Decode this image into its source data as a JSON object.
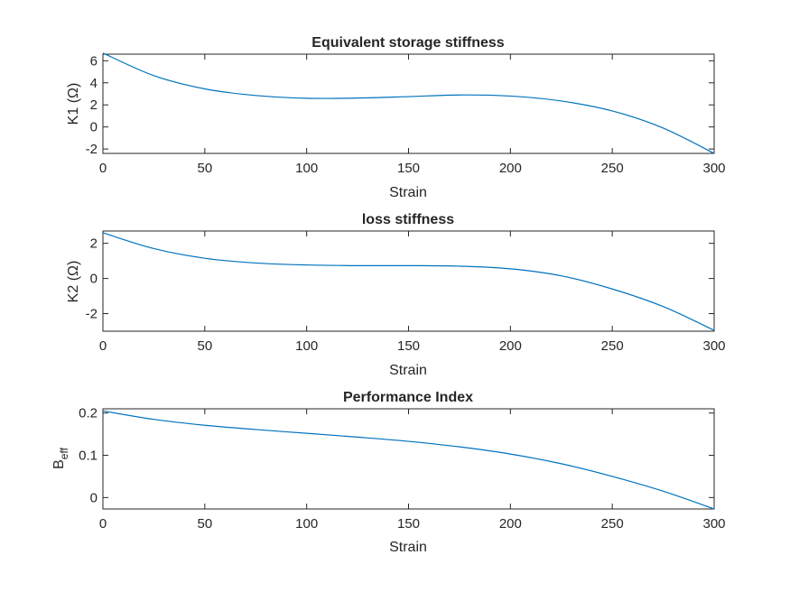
{
  "chart_data": [
    {
      "type": "line",
      "title": "Equivalent storage stiffness",
      "xlabel": "Strain",
      "ylabel": "K1 (Ω)",
      "xlim": [
        0,
        300
      ],
      "ylim": [
        -2.4,
        6.6
      ],
      "xticks": [
        0,
        50,
        100,
        150,
        200,
        250,
        300
      ],
      "yticks": [
        -2,
        0,
        2,
        4,
        6
      ],
      "grid": false,
      "series": [
        {
          "color": "#0072BD",
          "x": [
            0,
            25,
            50,
            75,
            100,
            125,
            150,
            175,
            200,
            225,
            250,
            275,
            300
          ],
          "y": [
            6.7,
            4.65,
            3.45,
            2.85,
            2.6,
            2.62,
            2.75,
            2.9,
            2.8,
            2.35,
            1.45,
            -0.1,
            -2.4
          ]
        }
      ]
    },
    {
      "type": "line",
      "title": "loss stiffness",
      "xlabel": "Strain",
      "ylabel": "K2 (Ω)",
      "xlim": [
        0,
        300
      ],
      "ylim": [
        -3,
        2.7
      ],
      "xticks": [
        0,
        50,
        100,
        150,
        200,
        250,
        300
      ],
      "yticks": [
        -2,
        0,
        2
      ],
      "grid": false,
      "series": [
        {
          "color": "#0072BD",
          "x": [
            0,
            25,
            50,
            75,
            100,
            125,
            150,
            175,
            200,
            225,
            250,
            275,
            300
          ],
          "y": [
            2.6,
            1.7,
            1.15,
            0.88,
            0.77,
            0.73,
            0.73,
            0.7,
            0.55,
            0.15,
            -0.6,
            -1.6,
            -2.95
          ]
        }
      ]
    },
    {
      "type": "line",
      "title": "Performance Index",
      "xlabel": "Strain",
      "ylabel": "B",
      "ylabel_subscript": "eff",
      "xlim": [
        0,
        300
      ],
      "ylim": [
        -0.027,
        0.21
      ],
      "xticks": [
        0,
        50,
        100,
        150,
        200,
        250,
        300
      ],
      "yticks": [
        0,
        0.1,
        0.2
      ],
      "grid": false,
      "series": [
        {
          "color": "#0072BD",
          "x": [
            0,
            25,
            50,
            75,
            100,
            125,
            150,
            175,
            200,
            225,
            250,
            275,
            300
          ],
          "y": [
            0.205,
            0.185,
            0.171,
            0.161,
            0.152,
            0.143,
            0.133,
            0.12,
            0.103,
            0.08,
            0.05,
            0.015,
            -0.027
          ]
        }
      ]
    }
  ]
}
